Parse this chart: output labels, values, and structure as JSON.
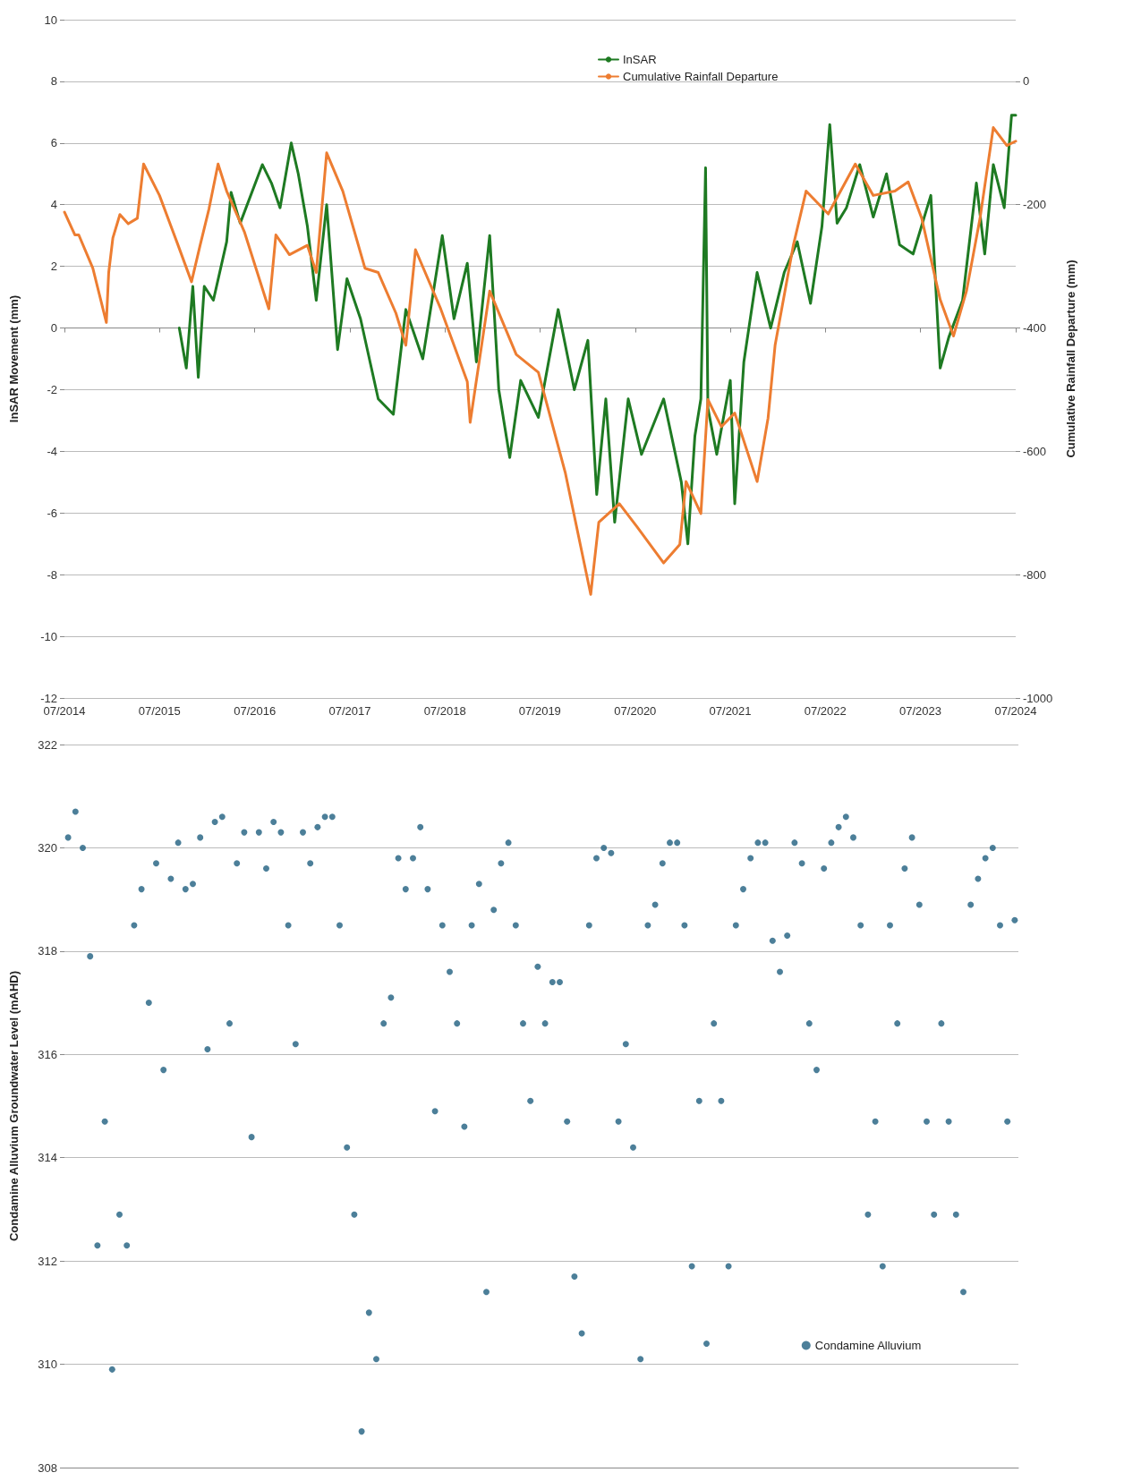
{
  "chart_data": [
    {
      "type": "line",
      "ylabel": "InSAR Movement (mm)",
      "y2label": "Cumulative Rainfall Departure (mm)",
      "xlim": [
        "2014-07-01",
        "2024-07-01"
      ],
      "xticks": [
        {
          "value": "2014-07-01",
          "label": "07/2014"
        },
        {
          "value": "2015-07-01",
          "label": "07/2015"
        },
        {
          "value": "2016-07-01",
          "label": "07/2016"
        },
        {
          "value": "2017-07-01",
          "label": "07/2017"
        },
        {
          "value": "2018-07-01",
          "label": "07/2018"
        },
        {
          "value": "2019-07-01",
          "label": "07/2019"
        },
        {
          "value": "2020-07-01",
          "label": "07/2020"
        },
        {
          "value": "2021-07-01",
          "label": "07/2021"
        },
        {
          "value": "2022-07-01",
          "label": "07/2022"
        },
        {
          "value": "2023-07-01",
          "label": "07/2023"
        },
        {
          "value": "2024-07-01",
          "label": "07/2024"
        }
      ],
      "ylim": [
        -12,
        10
      ],
      "yticks": [
        -12,
        -10,
        -8,
        -6,
        -4,
        -2,
        0,
        2,
        4,
        6,
        8,
        10
      ],
      "y2lim": [
        -1000,
        100
      ],
      "y2ticks": [
        -1000,
        -800,
        -600,
        -400,
        -200,
        0
      ],
      "grid": "y",
      "legend": "top",
      "marker": "none",
      "line_style": "solid",
      "series": [
        {
          "name": "InSAR",
          "color": "#1e7a22",
          "x": [
            "2015-09-15",
            "2015-10-12",
            "2015-11-06",
            "2015-11-27",
            "2015-12-20",
            "2016-01-24",
            "2016-03-15",
            "2016-04-01",
            "2016-05-06",
            "2016-07-30",
            "2016-09-03",
            "2016-10-06",
            "2016-11-18",
            "2016-12-15",
            "2017-01-19",
            "2017-02-22",
            "2017-04-03",
            "2017-05-15",
            "2017-06-20",
            "2017-08-11",
            "2017-10-18",
            "2017-12-15",
            "2018-02-01",
            "2018-04-07",
            "2018-06-21",
            "2018-08-05",
            "2018-09-25",
            "2018-10-30",
            "2018-12-20",
            "2019-01-24",
            "2019-03-07",
            "2019-04-18",
            "2019-06-25",
            "2019-09-09",
            "2019-11-10",
            "2020-01-01",
            "2020-02-04",
            "2020-03-10",
            "2020-04-13",
            "2020-06-04",
            "2020-07-25",
            "2020-10-18",
            "2020-12-25",
            "2021-01-19",
            "2021-02-15",
            "2021-03-10",
            "2021-03-28",
            "2021-04-06",
            "2021-05-10",
            "2021-07-01",
            "2021-07-18",
            "2021-08-22",
            "2021-10-12",
            "2021-12-03",
            "2022-01-24",
            "2022-03-15",
            "2022-05-05",
            "2022-06-18",
            "2022-07-18",
            "2022-08-15",
            "2022-09-20",
            "2022-11-10",
            "2023-01-01",
            "2023-02-21",
            "2023-04-12",
            "2023-06-03",
            "2023-08-10",
            "2023-09-15",
            "2023-10-18",
            "2023-12-10",
            "2024-02-01",
            "2024-03-04",
            "2024-04-06",
            "2024-05-18",
            "2024-06-15",
            "2024-07-01"
          ],
          "values": [
            0,
            -1.3,
            1.35,
            -1.6,
            1.35,
            0.9,
            2.8,
            4.4,
            3.4,
            5.3,
            4.7,
            3.9,
            6.0,
            5.0,
            3.3,
            0.9,
            4.0,
            -0.7,
            1.6,
            0.3,
            -2.3,
            -2.8,
            0.6,
            -1.0,
            3.0,
            0.3,
            2.1,
            -1.1,
            3.0,
            -2.0,
            -4.2,
            -1.7,
            -2.9,
            0.6,
            -2.0,
            -0.4,
            -5.4,
            -2.3,
            -6.3,
            -2.3,
            -4.1,
            -2.3,
            -5.0,
            -7.0,
            -3.5,
            -2.3,
            5.2,
            -2.6,
            -4.1,
            -1.7,
            -5.7,
            -1.1,
            1.8,
            0,
            1.8,
            2.8,
            0.8,
            3.3,
            6.6,
            3.4,
            3.9,
            5.3,
            3.6,
            5.0,
            2.7,
            2.4,
            4.3,
            -1.3,
            -0.3,
            0.9,
            4.7,
            2.4,
            5.3,
            3.9,
            6.9,
            6.9
          ]
        },
        {
          "name": "Cumulative Rainfall Departure",
          "color": "#ed7d31",
          "axis": "y2",
          "x": [
            "2014-07-01",
            "2014-08-10",
            "2014-08-25",
            "2014-10-18",
            "2014-12-09",
            "2014-12-18",
            "2015-01-03",
            "2015-01-30",
            "2015-03-03",
            "2015-04-07",
            "2015-05-01",
            "2015-07-01",
            "2015-09-08",
            "2015-11-01",
            "2015-12-04",
            "2016-01-07",
            "2016-02-11",
            "2016-03-15",
            "2016-05-22",
            "2016-08-24",
            "2016-09-20",
            "2016-11-11",
            "2017-01-19",
            "2017-02-22",
            "2017-04-03",
            "2017-06-04",
            "2017-08-28",
            "2017-10-18",
            "2017-12-25",
            "2018-02-01",
            "2018-03-10",
            "2018-06-15",
            "2018-09-25",
            "2018-10-06",
            "2018-12-20",
            "2019-04-01",
            "2019-06-25",
            "2019-10-06",
            "2020-01-12",
            "2020-02-12",
            "2020-05-01",
            "2020-07-07",
            "2020-10-18",
            "2020-12-19",
            "2021-01-12",
            "2021-03-10",
            "2021-04-06",
            "2021-05-28",
            "2021-07-18",
            "2021-10-12",
            "2021-11-23",
            "2021-12-20",
            "2022-02-28",
            "2022-04-18",
            "2022-07-12",
            "2022-10-24",
            "2023-01-01",
            "2023-03-25",
            "2023-05-15",
            "2023-07-06",
            "2023-09-15",
            "2023-11-05",
            "2023-12-25",
            "2024-02-15",
            "2024-04-06",
            "2024-05-28",
            "2024-07-01"
          ],
          "values": [
            -212,
            -249,
            -249,
            -303,
            -391,
            -310,
            -254,
            -216,
            -231,
            -222,
            -134,
            -185,
            -263,
            -325,
            -266,
            -207,
            -134,
            -178,
            -244,
            -369,
            -249,
            -281,
            -266,
            -310,
            -116,
            -178,
            -303,
            -310,
            -376,
            -428,
            -273,
            -369,
            -487,
            -553,
            -340,
            -443,
            -472,
            -634,
            -832,
            -715,
            -685,
            -722,
            -781,
            -751,
            -649,
            -701,
            -516,
            -560,
            -538,
            -649,
            -546,
            -428,
            -266,
            -178,
            -215,
            -134,
            -185,
            -178,
            -163,
            -222,
            -354,
            -413,
            -340,
            -222,
            -75,
            -104,
            -97
          ]
        }
      ]
    },
    {
      "type": "scatter",
      "ylabel": "Condamine Alluvium Groundwater Level (mAHD)",
      "categories": [
        null,
        null,
        null,
        null,
        null,
        null,
        null,
        null,
        null,
        null,
        null,
        null,
        null,
        null,
        null,
        null,
        null,
        null,
        null,
        null,
        null,
        null,
        null,
        null,
        null,
        null,
        null,
        null,
        null,
        null,
        null,
        null,
        null,
        null,
        null,
        null,
        null,
        null,
        null,
        null,
        null,
        null,
        null,
        null,
        null,
        null,
        null,
        null,
        null,
        null,
        null,
        null,
        null,
        null,
        null,
        null,
        null,
        null,
        null,
        null,
        null,
        null,
        null,
        null,
        null,
        null,
        null,
        null,
        null,
        null,
        null,
        null,
        null,
        null,
        null,
        null,
        null,
        null,
        null,
        null,
        null,
        null,
        null,
        null,
        null,
        null,
        null,
        null,
        null,
        null,
        null,
        null,
        null,
        null,
        null,
        null,
        null,
        null,
        null,
        null,
        null,
        null,
        null,
        null,
        null,
        null,
        null,
        null,
        null,
        null,
        null,
        null,
        null,
        null,
        null,
        null,
        null,
        null,
        null,
        null,
        null,
        null,
        null,
        null,
        null,
        null,
        null,
        null,
        null,
        null
      ],
      "ylim": [
        308,
        322
      ],
      "yticks": [
        308,
        310,
        312,
        314,
        316,
        318,
        320,
        322
      ],
      "tick_labels": "y",
      "grid": "y",
      "legend": "bottom right",
      "marker": "circle",
      "series": [
        {
          "name": "Condamine Alluvium",
          "color": "#1f5f80",
          "values": [
            320.2,
            320.7,
            320.0,
            317.9,
            312.3,
            314.7,
            309.9,
            312.9,
            312.3,
            318.5,
            319.2,
            317.0,
            319.7,
            315.7,
            319.4,
            320.1,
            319.2,
            319.3,
            320.2,
            316.1,
            320.5,
            320.6,
            316.6,
            319.7,
            320.3,
            314.4,
            320.3,
            319.6,
            320.5,
            320.3,
            318.5,
            316.2,
            320.3,
            319.7,
            320.4,
            320.6,
            320.6,
            318.5,
            314.2,
            312.9,
            308.7,
            311.0,
            310.1,
            316.6,
            317.1,
            319.8,
            319.2,
            319.8,
            320.4,
            319.2,
            314.9,
            318.5,
            317.6,
            316.6,
            314.6,
            318.5,
            319.3,
            311.4,
            318.8,
            319.7,
            320.1,
            318.5,
            316.6,
            315.1,
            317.7,
            316.6,
            317.4,
            317.4,
            314.7,
            311.7,
            310.6,
            318.5,
            319.8,
            320.0,
            319.9,
            314.7,
            316.2,
            314.2,
            310.1,
            318.5,
            318.9,
            319.7,
            320.1,
            320.1,
            318.5,
            311.9,
            315.1,
            310.4,
            316.6,
            315.1,
            311.9,
            318.5,
            319.2,
            319.8,
            320.1,
            320.1,
            318.2,
            317.6,
            318.3,
            320.1,
            319.7,
            316.6,
            315.7,
            319.6,
            320.1,
            320.4,
            320.6,
            320.2,
            318.5,
            312.9,
            314.7,
            311.9,
            318.5,
            316.6,
            319.6,
            320.2,
            318.9,
            314.7,
            312.9,
            316.6,
            314.7,
            312.9,
            311.4,
            318.9,
            319.4,
            319.8,
            320.0,
            318.5,
            314.7,
            318.6
          ]
        }
      ]
    }
  ]
}
